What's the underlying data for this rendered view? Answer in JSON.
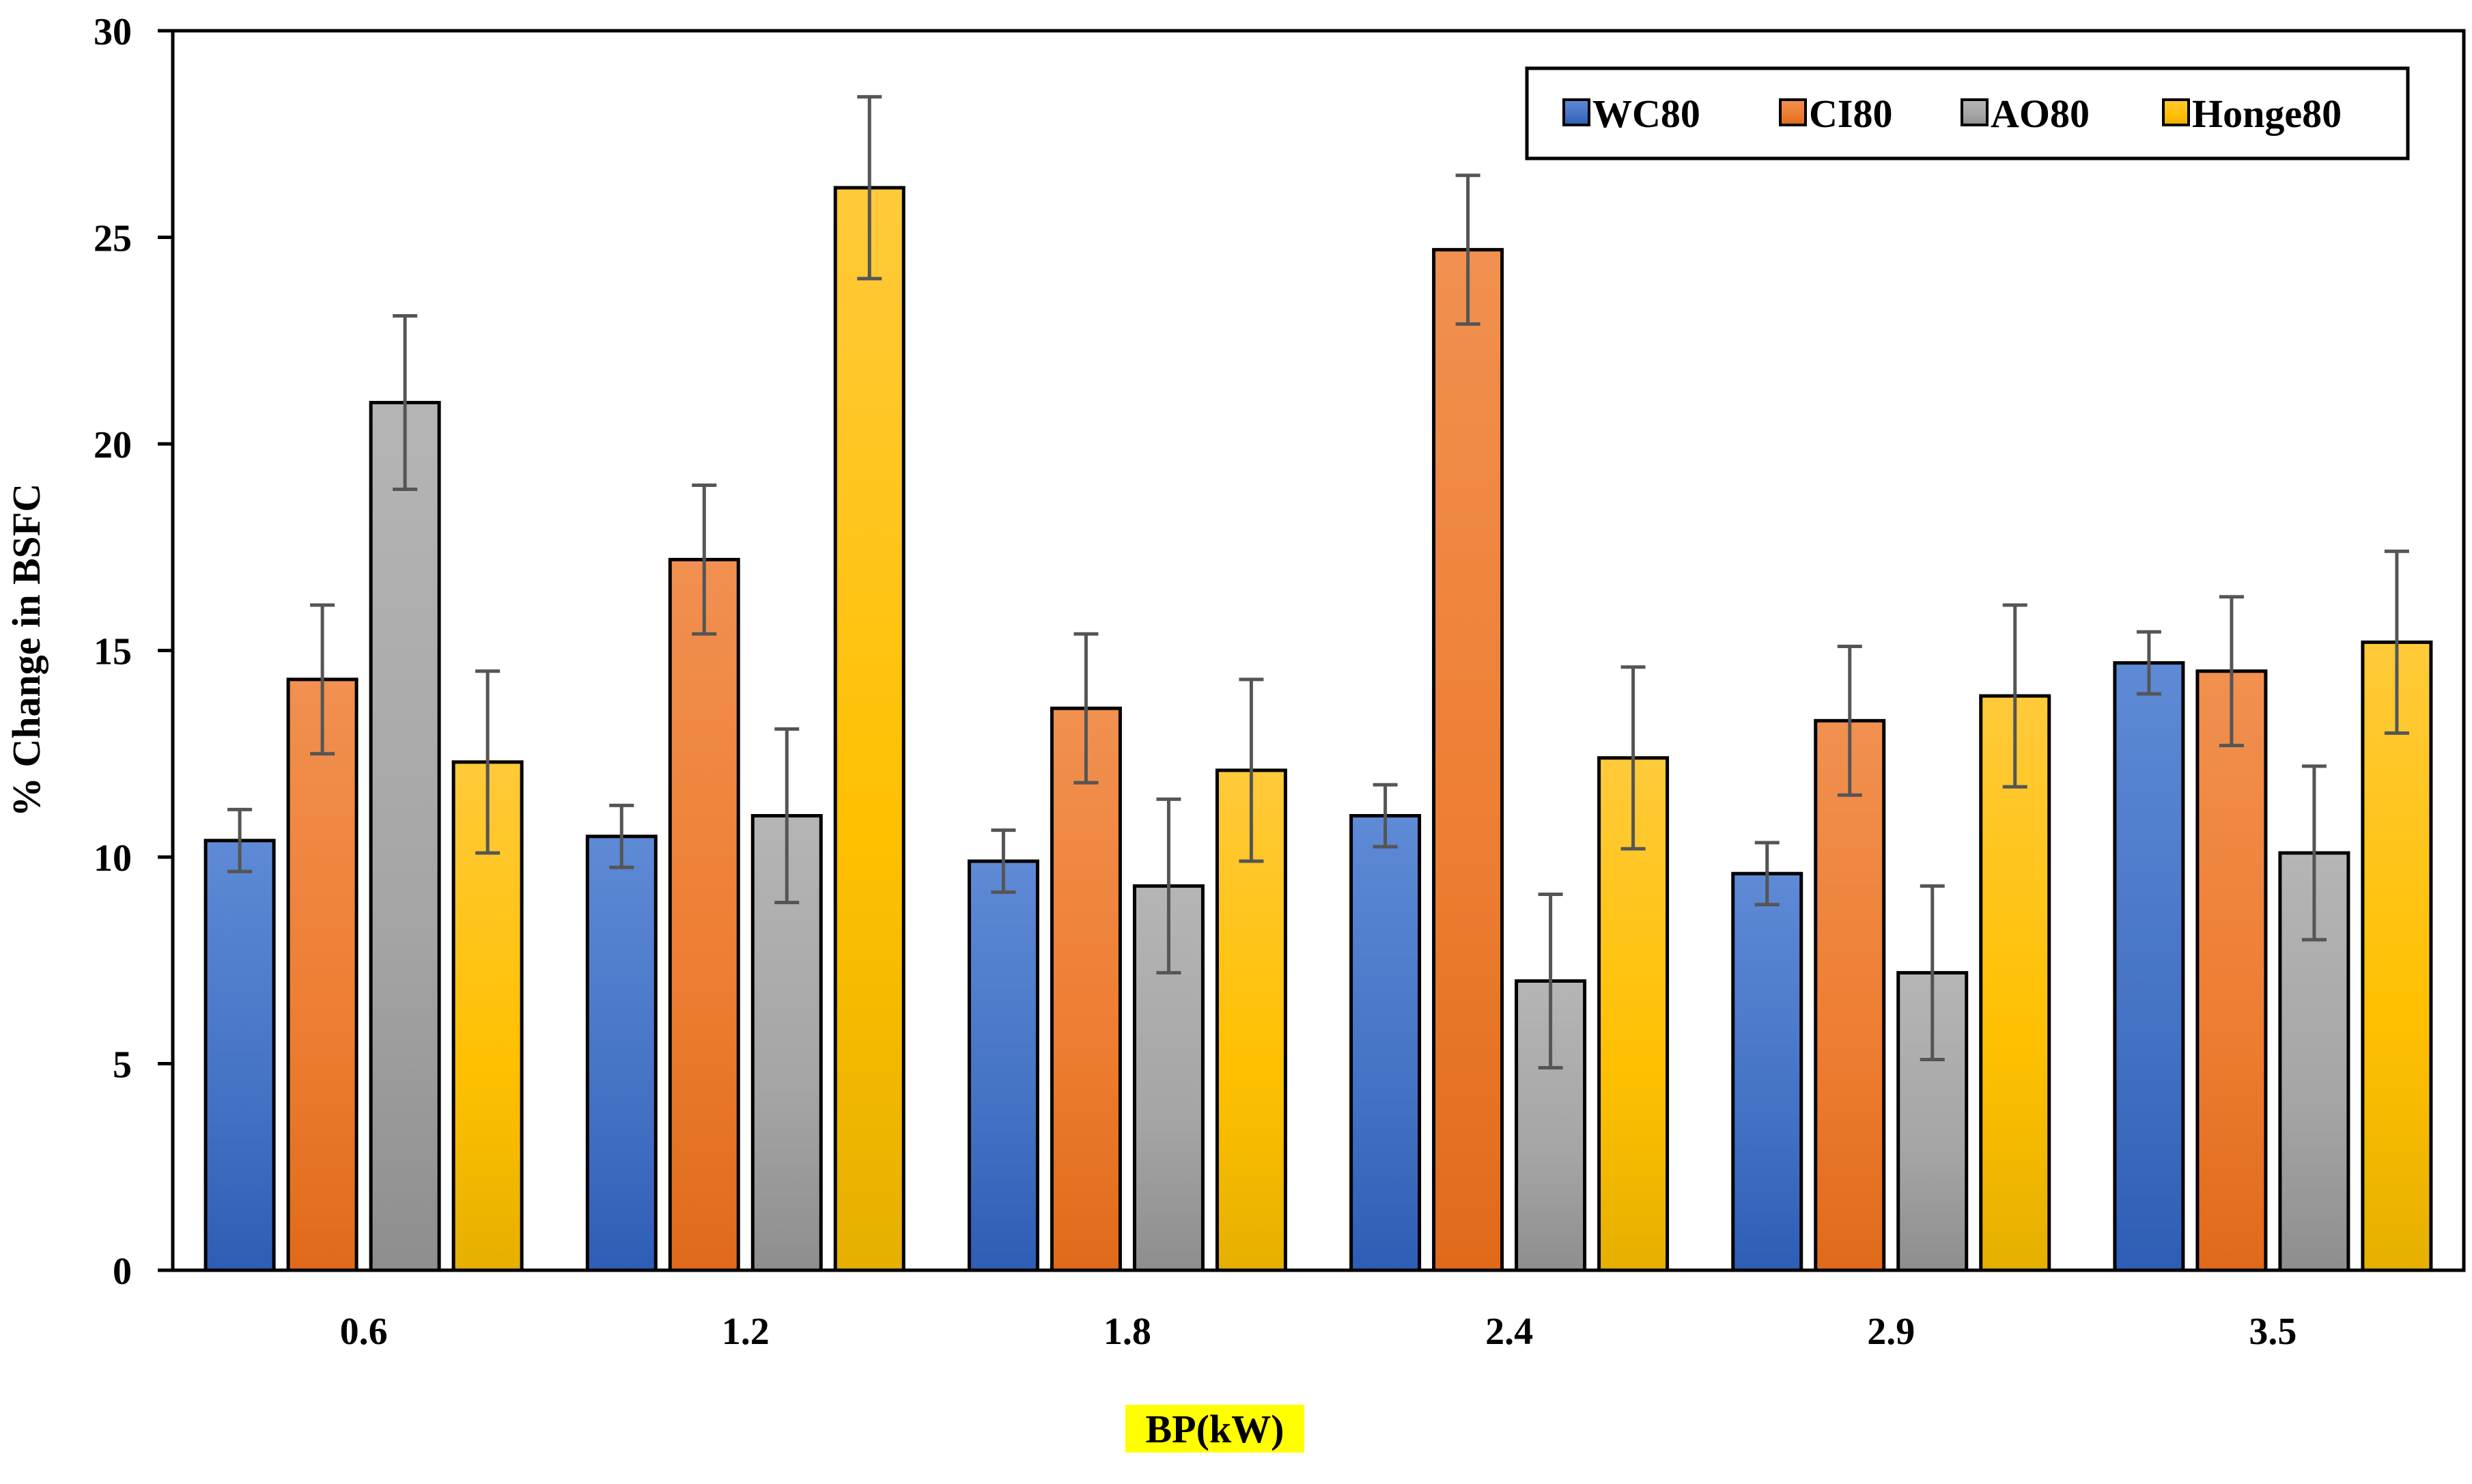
{
  "chart_data": {
    "type": "bar",
    "title": "",
    "xlabel": "BP(kW)",
    "ylabel": "% Change in BSFC",
    "ylim": [
      0,
      30
    ],
    "yticks": [
      0,
      5,
      10,
      15,
      20,
      25,
      30
    ],
    "categories": [
      "0.6",
      "1.2",
      "1.8",
      "2.4",
      "2.9",
      "3.5"
    ],
    "legend_position": "top-right",
    "series": [
      {
        "name": "WC80",
        "color": "#4472C4",
        "color_light": "#5E8AD6",
        "color_dark": "#2E5DB5",
        "values": [
          10.4,
          10.5,
          9.9,
          11.0,
          9.6,
          14.7
        ],
        "errors": [
          0.75,
          0.75,
          0.75,
          0.75,
          0.75,
          0.75
        ]
      },
      {
        "name": "CI80",
        "color": "#ED7D31",
        "color_light": "#F19050",
        "color_dark": "#E06A1A",
        "values": [
          14.3,
          17.2,
          13.6,
          24.7,
          13.3,
          14.5
        ],
        "errors": [
          1.8,
          1.8,
          1.8,
          1.8,
          1.8,
          1.8
        ]
      },
      {
        "name": "AO80",
        "color": "#A5A5A5",
        "color_light": "#B5B5B5",
        "color_dark": "#8E8E8E",
        "values": [
          21.0,
          11.0,
          9.3,
          7.0,
          7.2,
          10.1
        ],
        "errors": [
          2.1,
          2.1,
          2.1,
          2.1,
          2.1,
          2.1
        ]
      },
      {
        "name": "Honge80",
        "color": "#FFC000",
        "color_light": "#FFCA3A",
        "color_dark": "#E6B000",
        "values": [
          12.3,
          26.2,
          12.1,
          12.4,
          13.9,
          15.2
        ],
        "errors": [
          2.2,
          2.2,
          2.2,
          2.2,
          2.2,
          2.2
        ]
      }
    ]
  }
}
